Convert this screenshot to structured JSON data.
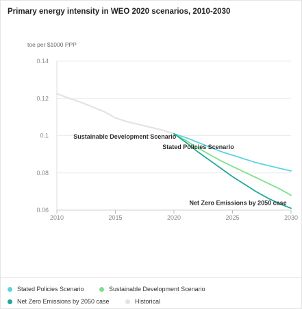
{
  "chart_data": {
    "type": "line",
    "title": "Primary energy intensity in WEO 2020 scenarios, 2010-2030",
    "ylabel": "toe per $1000 PPP",
    "xlabel": "",
    "xlim": [
      2010,
      2030
    ],
    "ylim": [
      0.06,
      0.14
    ],
    "x_ticks": [
      "2010",
      "2015",
      "2020",
      "2025",
      "2030"
    ],
    "y_ticks": [
      "0.14",
      "0.12",
      "0.1",
      "0.08",
      "0.06"
    ],
    "grid": true,
    "legend": "bottom",
    "series": [
      {
        "name": "Historical",
        "color": "#e3e3e3",
        "points": [
          [
            2010,
            0.1225
          ],
          [
            2011,
            0.1202
          ],
          [
            2012,
            0.118
          ],
          [
            2013,
            0.1155
          ],
          [
            2014,
            0.113
          ],
          [
            2015,
            0.1095
          ],
          [
            2016,
            0.1075
          ],
          [
            2017,
            0.106
          ],
          [
            2018,
            0.1045
          ],
          [
            2019,
            0.103
          ],
          [
            2020,
            0.101
          ]
        ]
      },
      {
        "name": "Stated Policies Scenario",
        "color": "#5ad3e3",
        "points": [
          [
            2020,
            0.101
          ],
          [
            2021,
            0.099
          ],
          [
            2022,
            0.0965
          ],
          [
            2023,
            0.094
          ],
          [
            2024,
            0.0915
          ],
          [
            2025,
            0.0895
          ],
          [
            2026,
            0.0875
          ],
          [
            2027,
            0.0855
          ],
          [
            2028,
            0.084
          ],
          [
            2029,
            0.0825
          ],
          [
            2030,
            0.081
          ]
        ]
      },
      {
        "name": "Sustainable Development Scenario",
        "color": "#7ee08a",
        "points": [
          [
            2020,
            0.101
          ],
          [
            2021,
            0.0975
          ],
          [
            2022,
            0.0935
          ],
          [
            2023,
            0.09
          ],
          [
            2024,
            0.0865
          ],
          [
            2025,
            0.0835
          ],
          [
            2026,
            0.0805
          ],
          [
            2027,
            0.0775
          ],
          [
            2028,
            0.0745
          ],
          [
            2029,
            0.0715
          ],
          [
            2030,
            0.068
          ]
        ]
      },
      {
        "name": "Net Zero Emissions by 2050 case",
        "color": "#1ea89a",
        "points": [
          [
            2020,
            0.101
          ],
          [
            2021,
            0.0965
          ],
          [
            2022,
            0.0915
          ],
          [
            2023,
            0.087
          ],
          [
            2024,
            0.0825
          ],
          [
            2025,
            0.078
          ],
          [
            2026,
            0.074
          ],
          [
            2027,
            0.07
          ],
          [
            2028,
            0.0665
          ],
          [
            2029,
            0.0635
          ],
          [
            2030,
            0.061
          ]
        ]
      }
    ],
    "annotations": [
      {
        "text": "Sustainable Development Scenario",
        "series": "Sustainable Development Scenario"
      },
      {
        "text": "Stated Policies Scenario",
        "series": "Stated Policies Scenario"
      },
      {
        "text": "Net Zero Emissions by 2050 case",
        "series": "Net Zero Emissions by 2050 case"
      }
    ]
  },
  "legend": {
    "items": [
      {
        "label": "Stated Policies Scenario",
        "color": "#5ad3e3"
      },
      {
        "label": "Sustainable Development Scenario",
        "color": "#7ee08a"
      },
      {
        "label": "Net Zero Emissions by 2050 case",
        "color": "#1ea89a"
      },
      {
        "label": "Historical",
        "color": "#e3e3e3"
      }
    ]
  }
}
